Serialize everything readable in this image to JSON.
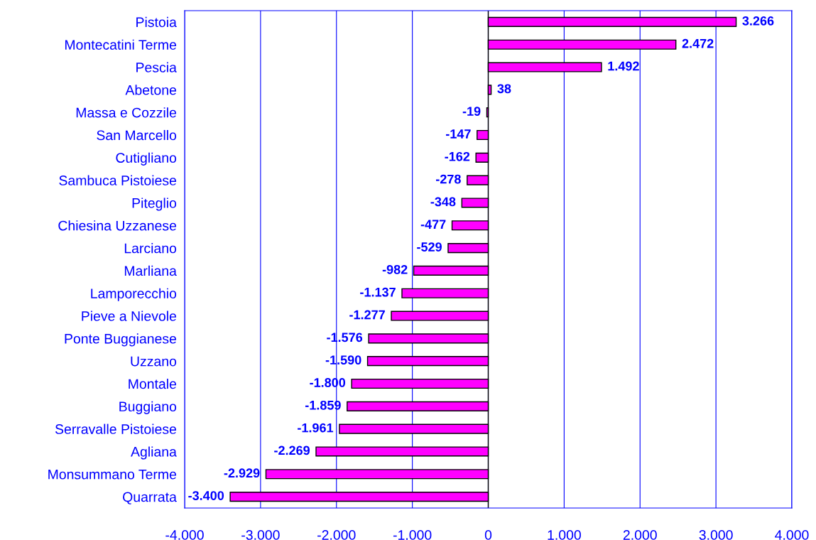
{
  "chart_data": {
    "type": "bar",
    "orientation": "horizontal",
    "categories": [
      "Pistoia",
      "Montecatini Terme",
      "Pescia",
      "Abetone",
      "Massa e Cozzile",
      "San Marcello",
      "Cutigliano",
      "Sambuca Pistoiese",
      "Piteglio",
      "Chiesina Uzzanese",
      "Larciano",
      "Marliana",
      "Lamporecchio",
      "Pieve a Nievole",
      "Ponte Buggianese",
      "Uzzano",
      "Montale",
      "Buggiano",
      "Serravalle Pistoiese",
      "Agliana",
      "Monsummano Terme",
      "Quarrata"
    ],
    "values": [
      3266,
      2472,
      1492,
      38,
      -19,
      -147,
      -162,
      -278,
      -348,
      -477,
      -529,
      -982,
      -1137,
      -1277,
      -1576,
      -1590,
      -1800,
      -1859,
      -1961,
      -2269,
      -2929,
      -3400
    ],
    "value_labels": [
      "3.266",
      "2.472",
      "1.492",
      "38",
      "-19",
      "-147",
      "-162",
      "-278",
      "-348",
      "-477",
      "-529",
      "-982",
      "-1.137",
      "-1.277",
      "-1.576",
      "-1.590",
      "-1.800",
      "-1.859",
      "-1.961",
      "-2.269",
      "-2.929",
      "-3.400"
    ],
    "color": "#ff00ff",
    "xlim": [
      -4000,
      4000
    ],
    "xticks": [
      {
        "value": -4000,
        "label": "-4.000"
      },
      {
        "value": -3000,
        "label": "-3.000"
      },
      {
        "value": -2000,
        "label": "-2.000"
      },
      {
        "value": -1000,
        "label": "-1.000"
      },
      0,
      {
        "value": 1000,
        "label": "1.000"
      },
      {
        "value": 2000,
        "label": "2.000"
      },
      {
        "value": 3000,
        "label": "3.000"
      },
      {
        "value": 4000,
        "label": "4.000"
      }
    ],
    "grid": "x",
    "legend": false
  }
}
